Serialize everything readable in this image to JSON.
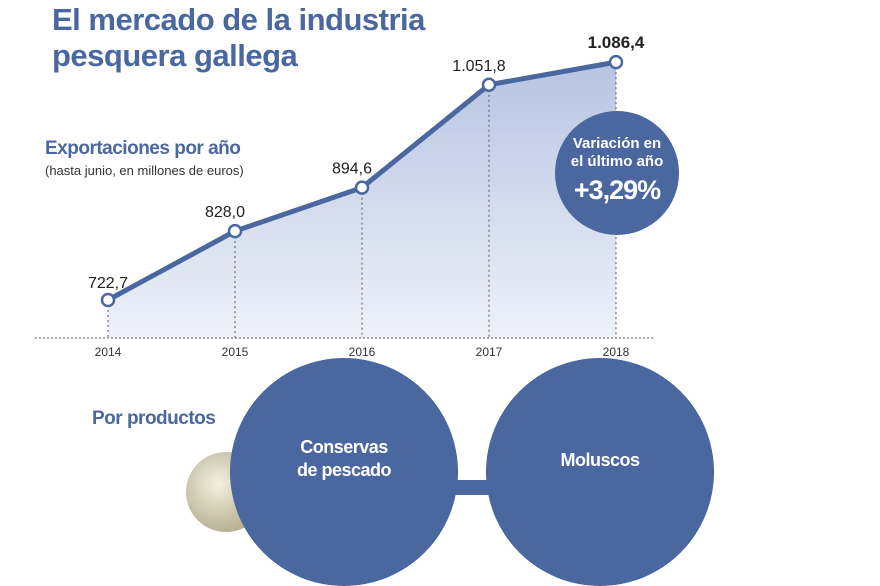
{
  "title_line1": "El mercado de la industria",
  "title_line2": "pesquera gallega",
  "colors": {
    "accent": "#4a67a0",
    "area": "#c5cfe6"
  },
  "chart_data": {
    "type": "area",
    "title": "Exportaciones por año",
    "subtitle": "(hasta junio, en millones de euros)",
    "categories": [
      "2014",
      "2015",
      "2016",
      "2017",
      "2018"
    ],
    "values": [
      722.7,
      828.0,
      894.6,
      1051.8,
      1086.4
    ],
    "labels": [
      "722,7",
      "828,0",
      "894,6",
      "1.051,8",
      "1.086,4"
    ],
    "grid": false
  },
  "badge": {
    "label_line1": "Variación en",
    "label_line2": "el último año",
    "value": "+3,29%"
  },
  "products": {
    "heading": "Por productos",
    "items": [
      {
        "label_line1": "Conservas",
        "label_line2": "de pescado"
      },
      {
        "label_line1": "Moluscos",
        "label_line2": ""
      }
    ]
  }
}
